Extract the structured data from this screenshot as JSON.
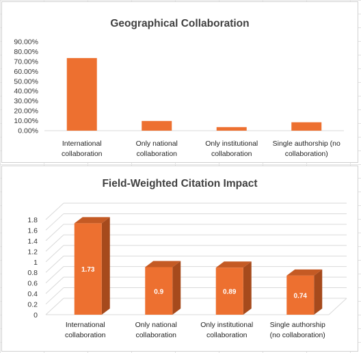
{
  "colors": {
    "bar": "#ED7030",
    "bar_top": "#C45A24",
    "bar_side": "#A64A1C",
    "grid": "#d9d9d9"
  },
  "chart_data": [
    {
      "type": "bar",
      "title": "Geographical Collaboration",
      "categories": [
        [
          "International",
          "collaboration"
        ],
        [
          "Only national",
          "collaboration"
        ],
        [
          "Only institutional",
          "collaboration"
        ],
        [
          "Single authorship (no",
          "collaboration)"
        ]
      ],
      "values": [
        0.735,
        0.098,
        0.036,
        0.085
      ],
      "ylim": [
        0,
        0.9
      ],
      "ytick_step": 0.1,
      "ytick_labels": [
        "0.00%",
        "10.00%",
        "20.00%",
        "30.00%",
        "40.00%",
        "50.00%",
        "60.00%",
        "70.00%",
        "80.00%",
        "90.00%"
      ],
      "grid": false,
      "legend": "none"
    },
    {
      "type": "bar",
      "style": "3d",
      "title": "Field-Weighted Citation Impact",
      "categories": [
        [
          "International",
          "collaboration"
        ],
        [
          "Only national",
          "collaboration"
        ],
        [
          "Only institutional",
          "collaboration"
        ],
        [
          "Single authorship",
          "(no collaboration)"
        ]
      ],
      "values": [
        1.73,
        0.9,
        0.89,
        0.74
      ],
      "data_labels": [
        "1.73",
        "0.9",
        "0.89",
        "0.74"
      ],
      "ylim": [
        0,
        1.8
      ],
      "ytick_step": 0.2,
      "ytick_labels": [
        "0",
        "0.2",
        "0.4",
        "0.6",
        "0.8",
        "1",
        "1.2",
        "1.4",
        "1.6",
        "1.8"
      ],
      "grid": true,
      "legend": "none"
    }
  ]
}
